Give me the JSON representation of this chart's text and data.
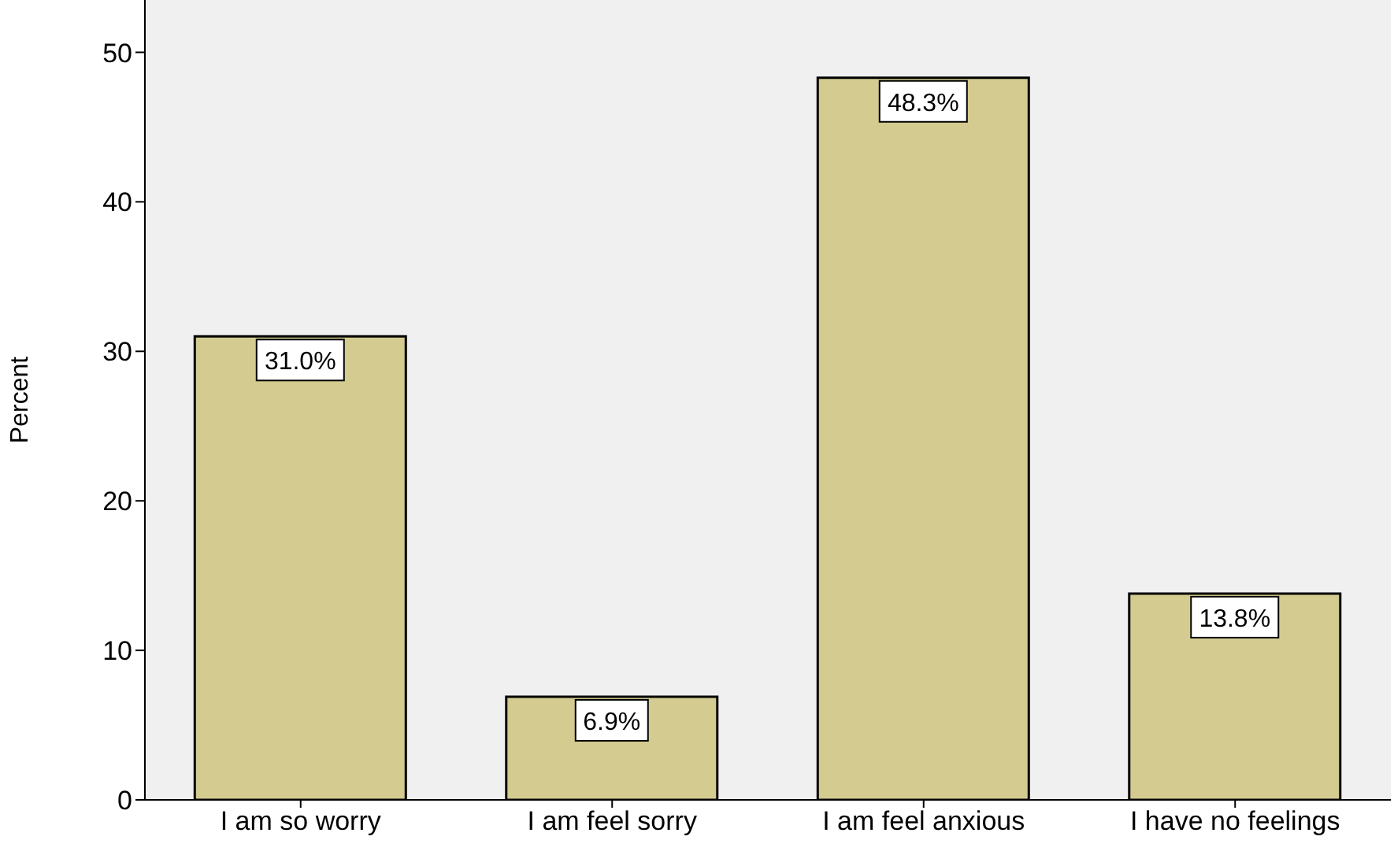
{
  "chart_data": {
    "type": "bar",
    "ylabel": "Percent",
    "categories": [
      "I am so worry",
      "I am feel sorry",
      "I am feel anxious",
      "I have no feelings"
    ],
    "values": [
      31.0,
      6.9,
      48.3,
      13.8
    ],
    "value_labels": [
      "31.0%",
      "6.9%",
      "48.3%",
      "13.8%"
    ],
    "color": "#d3cb8f",
    "ylim": [
      0,
      53.5
    ],
    "yticks": [
      0,
      10,
      20,
      30,
      40,
      50
    ],
    "grid": false,
    "legend": false
  }
}
